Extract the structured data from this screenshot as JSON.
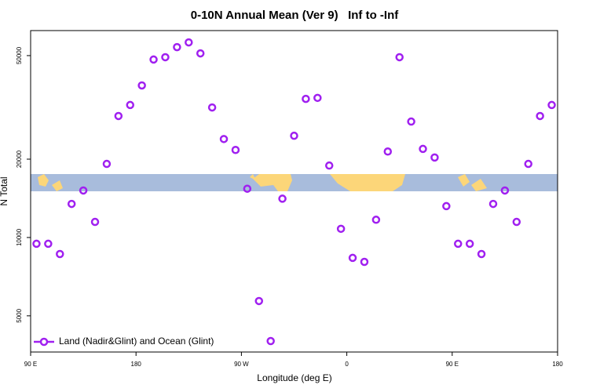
{
  "chart_data": {
    "type": "scatter",
    "title": "0-10N Annual Mean (Ver 9)   Inf to -Inf",
    "x_label": "Longitude (deg E)",
    "y_label": "N Total",
    "x": [
      95,
      105,
      115,
      125,
      135,
      145,
      155,
      165,
      175,
      185,
      195,
      205,
      215,
      225,
      235,
      245,
      255,
      265,
      275,
      285,
      295,
      305,
      315,
      325,
      335,
      345,
      355,
      365,
      375,
      385,
      395,
      405,
      415,
      425,
      435,
      445,
      455,
      465,
      475,
      485,
      495,
      505,
      515,
      525,
      535
    ],
    "series": [
      {
        "name": "Land (Nadir&Glint) and Ocean (Glint)",
        "color": "#a020f0",
        "values": [
          9460,
          9460,
          8640,
          13460,
          15160,
          11480,
          19180,
          29300,
          32300,
          38400,
          48300,
          49300,
          53900,
          56200,
          51000,
          31600,
          23900,
          21700,
          15400,
          5700,
          4000,
          14100,
          24600,
          34100,
          34400,
          18900,
          10800,
          8350,
          8060,
          11700,
          21400,
          49300,
          27900,
          21900,
          20300,
          13200,
          9460,
          9460,
          8640,
          13460,
          15160,
          11480,
          19180,
          29300,
          32300
        ]
      }
    ],
    "xlim": [
      90,
      540
    ],
    "xticks": [
      {
        "value": 90,
        "label": "90 E"
      },
      180,
      {
        "value": 270,
        "label": "90 W"
      },
      {
        "value": 360,
        "label": "0"
      },
      {
        "value": 450,
        "label": "90 E"
      },
      {
        "value": 540,
        "label": "180"
      }
    ],
    "ylim": [
      3630,
      62400
    ],
    "yticks": [
      5000,
      10000,
      20000,
      50000
    ],
    "log_y": true,
    "legend": "bottom-left"
  }
}
